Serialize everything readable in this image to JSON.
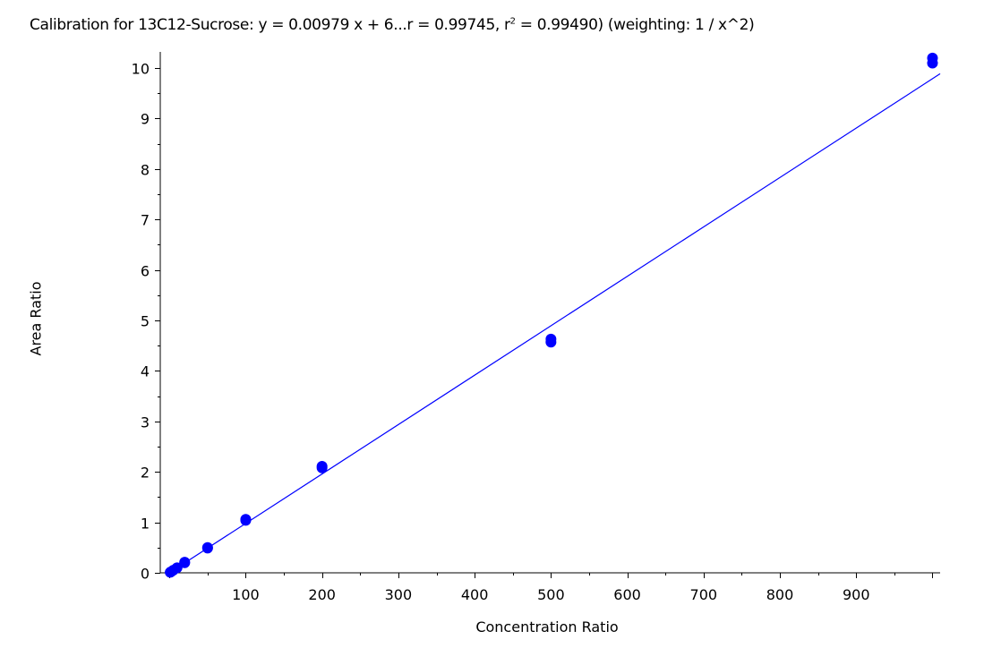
{
  "chart_data": {
    "type": "scatter",
    "title_parts": {
      "prefix": "Calibration for 13C12-Sucrose: y = 0.00979 x + 6...r = 0.99745, r",
      "sup": "2",
      "suffix": " = 0.99490)  (weighting: 1 / x^2)"
    },
    "xlabel": "Concentration Ratio",
    "ylabel": "Area Ratio",
    "xlim": [
      -12,
      1010
    ],
    "ylim": [
      0,
      10.25
    ],
    "x_ticks": [
      100,
      200,
      300,
      400,
      500,
      600,
      700,
      800,
      900
    ],
    "y_ticks": [
      0,
      1,
      2,
      3,
      4,
      5,
      6,
      7,
      8,
      9,
      10
    ],
    "grid": false,
    "point_color": "#0000ff",
    "line_color": "#0000ff",
    "fit_line": {
      "slope": 0.00979,
      "intercept_est": 0.0
    },
    "points": [
      {
        "x": 1,
        "y": 0.01
      },
      {
        "x": 2,
        "y": 0.02
      },
      {
        "x": 5,
        "y": 0.05
      },
      {
        "x": 10,
        "y": 0.1
      },
      {
        "x": 20,
        "y": 0.2
      },
      {
        "x": 20,
        "y": 0.21
      },
      {
        "x": 50,
        "y": 0.49
      },
      {
        "x": 50,
        "y": 0.5
      },
      {
        "x": 100,
        "y": 1.04
      },
      {
        "x": 100,
        "y": 1.06
      },
      {
        "x": 200,
        "y": 2.08
      },
      {
        "x": 200,
        "y": 2.11
      },
      {
        "x": 500,
        "y": 4.57
      },
      {
        "x": 500,
        "y": 4.63
      },
      {
        "x": 1000,
        "y": 10.1
      },
      {
        "x": 1000,
        "y": 10.2
      }
    ]
  }
}
